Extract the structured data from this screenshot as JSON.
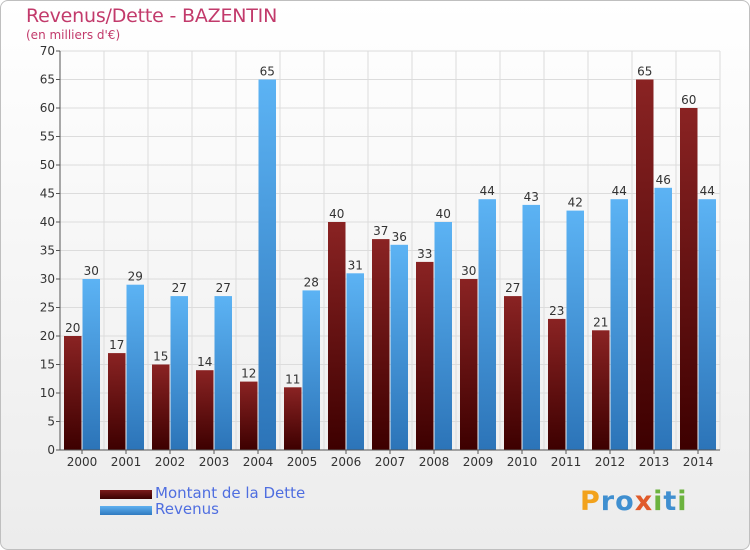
{
  "header": {
    "title": "Revenus/Dette - BAZENTIN",
    "subtitle": "(en milliers d'€)"
  },
  "logo": {
    "text": "Proxiti",
    "letters": [
      {
        "ch": "P",
        "color": "#f2a21c"
      },
      {
        "ch": "r",
        "color": "#3f8fd0"
      },
      {
        "ch": "o",
        "color": "#3f8fd0"
      },
      {
        "ch": "x",
        "color": "#e05a2a"
      },
      {
        "ch": "i",
        "color": "#6cb33f"
      },
      {
        "ch": "t",
        "color": "#3f8fd0"
      },
      {
        "ch": "i",
        "color": "#6cb33f"
      }
    ]
  },
  "chart_data": {
    "type": "bar",
    "title": "Revenus/Dette - BAZENTIN",
    "subtitle": "(en milliers d'€)",
    "categories": [
      "2000",
      "2001",
      "2002",
      "2003",
      "2004",
      "2005",
      "2006",
      "2007",
      "2008",
      "2009",
      "2010",
      "2011",
      "2012",
      "2013",
      "2014"
    ],
    "series": [
      {
        "name": "Montant de la Dette",
        "color": "#6b1414",
        "values": [
          20,
          17,
          15,
          14,
          12,
          11,
          40,
          37,
          33,
          30,
          27,
          23,
          21,
          65,
          60
        ]
      },
      {
        "name": "Revenus",
        "color": "#4a9fe6",
        "values": [
          30,
          29,
          27,
          27,
          65,
          28,
          31,
          36,
          40,
          44,
          43,
          42,
          44,
          46,
          44
        ]
      }
    ],
    "ylim": [
      0,
      70
    ],
    "yticks": [
      0,
      5,
      10,
      15,
      20,
      25,
      30,
      35,
      40,
      45,
      50,
      55,
      60,
      65,
      70
    ],
    "grid": true,
    "legend_position": "bottom-left"
  }
}
